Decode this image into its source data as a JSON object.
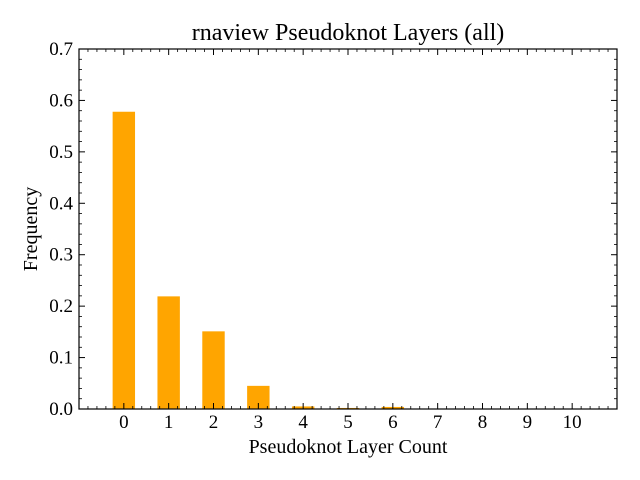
{
  "chart_data": {
    "type": "bar",
    "title": "rnaview Pseudoknot Layers (all)",
    "xlabel": "Pseudoknot Layer Count",
    "ylabel": "Frequency",
    "categories": [
      "0",
      "1",
      "2",
      "3",
      "4",
      "5",
      "6",
      "7",
      "8",
      "9",
      "10"
    ],
    "values": [
      0.578,
      0.219,
      0.151,
      0.045,
      0.005,
      0.002,
      0.004,
      0.0,
      0.0,
      0.0,
      0.0
    ],
    "xlim": [
      -1,
      11
    ],
    "ylim": [
      0,
      0.7
    ],
    "yticks": [
      "0.0",
      "0.1",
      "0.2",
      "0.3",
      "0.4",
      "0.5",
      "0.6",
      "0.7"
    ],
    "bar_color": "#ffa500",
    "grid": false,
    "legend": "none"
  }
}
